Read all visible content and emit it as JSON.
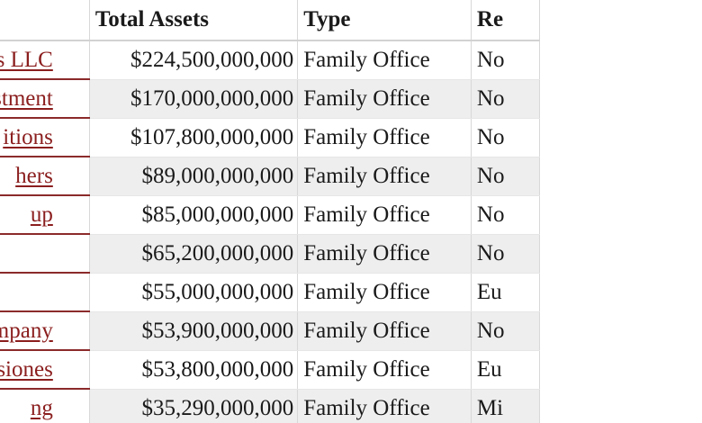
{
  "table": {
    "headers": {
      "name": "",
      "total_assets": "Total Assets",
      "type": "Type",
      "region": "Re"
    },
    "rows": [
      {
        "name": "rprises LLC",
        "total_assets": "$224,500,000,000",
        "type": "Family Office",
        "region": "No"
      },
      {
        "name": "estment",
        "total_assets": "$170,000,000,000",
        "type": "Family Office",
        "region": "No"
      },
      {
        "name": "itions",
        "total_assets": "$107,800,000,000",
        "type": "Family Office",
        "region": "No"
      },
      {
        "name": "hers",
        "total_assets": "$89,000,000,000",
        "type": "Family Office",
        "region": "No"
      },
      {
        "name": "up",
        "total_assets": "$85,000,000,000",
        "type": "Family Office",
        "region": "No"
      },
      {
        "name": "",
        "total_assets": "$65,200,000,000",
        "type": "Family Office",
        "region": "No"
      },
      {
        "name": "",
        "total_assets": "$55,000,000,000",
        "type": "Family Office",
        "region": "Eu"
      },
      {
        "name": "dge Company",
        "total_assets": "$53,900,000,000",
        "type": "Family Office",
        "region": "No"
      },
      {
        "name": "nversiones",
        "total_assets": "$53,800,000,000",
        "type": "Family Office",
        "region": "Eu"
      },
      {
        "name": "ng",
        "total_assets": "$35,290,000,000",
        "type": "Family Office",
        "region": "Mi"
      }
    ]
  },
  "colors": {
    "link": "#8b1e1e",
    "row_alt": "#eeeeee",
    "text": "#1a1a1a"
  }
}
